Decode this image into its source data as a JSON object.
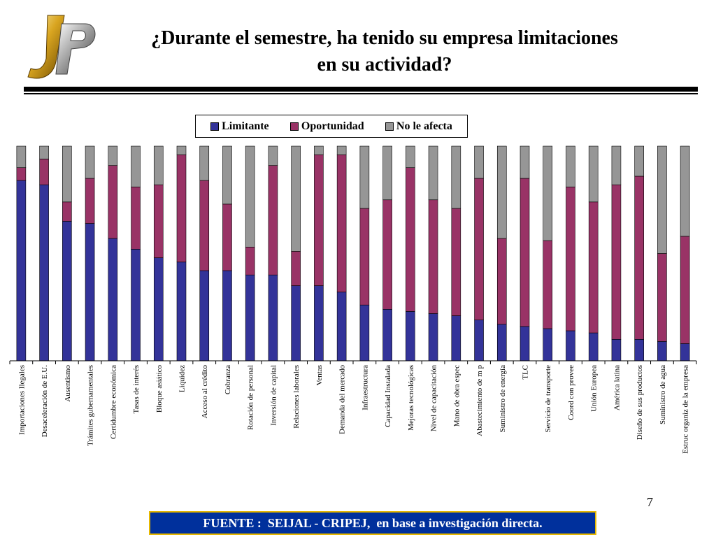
{
  "title_line1": "¿Durante el semestre, ha tenido su empresa limitaciones",
  "title_line2": "en su actividad?",
  "page_number": "7",
  "source_text": "FUENTE :  SEIJAL - CRIPEJ,  en base a investigación directa.",
  "colors": {
    "limitante": "#333399",
    "oportunidad": "#993366",
    "no_afecta": "#969696",
    "source_bg": "#00309c",
    "source_border": "#e6b800"
  },
  "legend": [
    "Limitante",
    "Oportunidad",
    "No le afecta"
  ],
  "chart_data": {
    "type": "bar",
    "stacked": true,
    "normalized": true,
    "categories": [
      "Importaciones Ilegales",
      "Desaceleración de E.U.",
      "Ausentismo",
      "Trámites gubernamentales",
      "Certidumbre económica",
      "Tasas de interés",
      "Bloque asiático",
      "Liquidez",
      "Acceso al crédito",
      "Cobranza",
      "Rotación de personal",
      "Inversión de capital",
      "Relaciones laborales",
      "Ventas",
      "Demanda del mercado",
      "Infraestructura",
      "Capacidad Instalada",
      "Mejoras tecnológicas",
      "Nivel de capacitación",
      "Mano de obra espec",
      "Abastecimiento de m p",
      "Suministro de energía",
      "TLC",
      "Servicio de transporte",
      "Coord con provee",
      "Unión Europea",
      "América latina",
      "Diseño de sus productos",
      "Suministro de agua",
      "Estruc organiz de la empresa"
    ],
    "series": [
      {
        "name": "Limitante",
        "values": [
          84,
          82,
          65,
          64,
          57,
          52,
          48,
          46,
          42,
          42,
          40,
          40,
          35,
          35,
          32,
          26,
          24,
          23,
          22,
          21,
          19,
          17,
          16,
          15,
          14,
          13,
          10,
          10,
          9,
          8
        ]
      },
      {
        "name": "Oportunidad",
        "values": [
          6,
          12,
          9,
          21,
          34,
          29,
          34,
          50,
          42,
          31,
          13,
          51,
          16,
          61,
          64,
          45,
          51,
          67,
          53,
          50,
          66,
          40,
          69,
          41,
          67,
          61,
          72,
          76,
          41,
          50
        ]
      },
      {
        "name": "No le afecta",
        "values": [
          10,
          6,
          26,
          15,
          9,
          19,
          18,
          4,
          16,
          27,
          47,
          9,
          49,
          4,
          4,
          29,
          25,
          10,
          25,
          29,
          15,
          43,
          15,
          44,
          19,
          26,
          18,
          14,
          50,
          42
        ]
      }
    ],
    "ylim": [
      0,
      100
    ],
    "grid": false,
    "legend_position": "top-center"
  }
}
